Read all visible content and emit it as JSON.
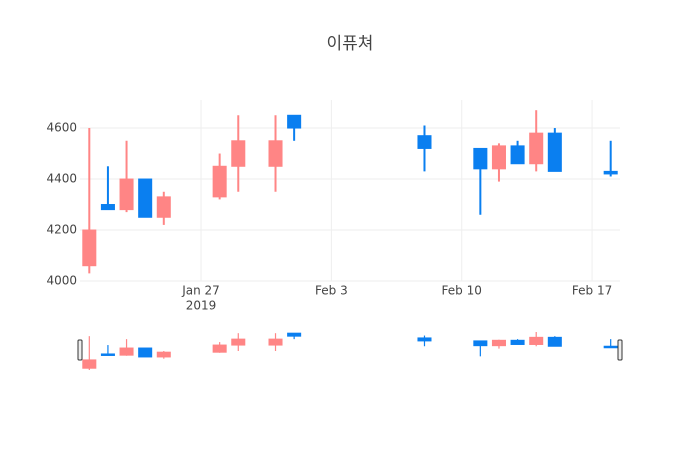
{
  "chart_data": {
    "type": "candlestick",
    "title": "이퓨쳐",
    "x": [
      "2019-01-21",
      "2019-01-22",
      "2019-01-23",
      "2019-01-24",
      "2019-01-25",
      "2019-01-28",
      "2019-01-29",
      "2019-01-31",
      "2019-02-01",
      "2019-02-08",
      "2019-02-11",
      "2019-02-12",
      "2019-02-13",
      "2019-02-14",
      "2019-02-15",
      "2019-02-18"
    ],
    "open": [
      4060,
      4300,
      4280,
      4400,
      4250,
      4330,
      4450,
      4450,
      4650,
      4570,
      4520,
      4440,
      4530,
      4460,
      4580,
      4430
    ],
    "high": [
      4600,
      4450,
      4550,
      4400,
      4350,
      4500,
      4650,
      4650,
      4650,
      4610,
      4520,
      4540,
      4550,
      4670,
      4600,
      4550
    ],
    "low": [
      4030,
      4280,
      4270,
      4250,
      4220,
      4320,
      4350,
      4350,
      4550,
      4430,
      4260,
      4390,
      4460,
      4430,
      4430,
      4410
    ],
    "close": [
      4200,
      4280,
      4400,
      4250,
      4330,
      4450,
      4550,
      4550,
      4600,
      4520,
      4440,
      4530,
      4460,
      4580,
      4430,
      4420
    ],
    "increasing_color": "#ff8585",
    "decreasing_color": "#0a7ff0",
    "xlim": [
      "2019-01-20T12:00:00Z",
      "2019-02-18T12:00:00Z"
    ],
    "xticks": [
      {
        "value": "2019-01-27",
        "label": "Jan 27"
      },
      {
        "value": "2019-02-03",
        "label": "Feb 3"
      },
      {
        "value": "2019-02-10",
        "label": "Feb 10"
      },
      {
        "value": "2019-02-17",
        "label": "Feb 17"
      }
    ],
    "xtick_year_label": "2019",
    "ylim": [
      4000,
      4710
    ],
    "yticks": [
      4000,
      4200,
      4400,
      4600
    ],
    "grid": true,
    "rangeslider": true
  }
}
